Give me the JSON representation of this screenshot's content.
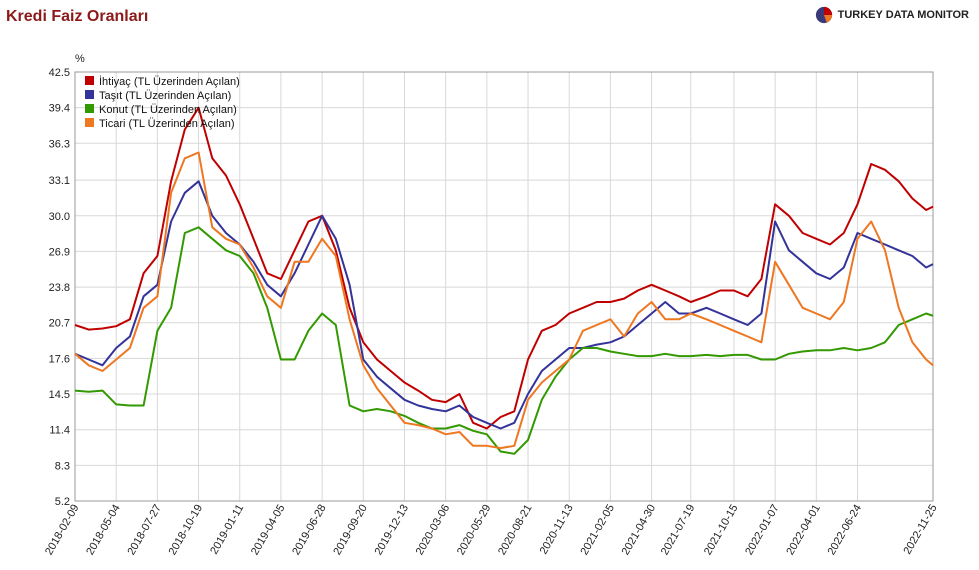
{
  "title": "Kredi Faiz Oranları",
  "brand": {
    "name": "TURKEY DATA MONITOR",
    "icon": "pie-logo-icon"
  },
  "chart_data": {
    "type": "line",
    "ylabel": "%",
    "ylim": [
      5.2,
      42.5
    ],
    "yticks": [
      5.2,
      8.3,
      11.4,
      14.5,
      17.6,
      20.7,
      23.8,
      26.9,
      30.0,
      33.1,
      36.3,
      39.4,
      42.5
    ],
    "ytick_labels": [
      "5.2",
      "8.3",
      "11.4",
      "14.5",
      "17.6",
      "20.7",
      "23.8",
      "26.9",
      "30.0",
      "33.1",
      "36.3",
      "39.4",
      "42.5"
    ],
    "xlim": [
      "2018-02-09",
      "2022-11-25"
    ],
    "xticks": [
      "2018-02-09",
      "2018-05-04",
      "2018-07-27",
      "2018-10-19",
      "2019-01-11",
      "2019-04-05",
      "2019-06-28",
      "2019-09-20",
      "2019-12-13",
      "2020-03-06",
      "2020-05-29",
      "2020-08-21",
      "2020-11-13",
      "2021-02-05",
      "2021-04-30",
      "2021-07-19",
      "2021-10-15",
      "2022-01-07",
      "2022-04-01",
      "2022-06-24",
      "2022-11-25"
    ],
    "grid": true,
    "legend_position": "top-left",
    "x": [
      "2018-02-09",
      "2018-03-09",
      "2018-04-06",
      "2018-05-04",
      "2018-06-01",
      "2018-06-29",
      "2018-07-27",
      "2018-08-24",
      "2018-09-21",
      "2018-10-19",
      "2018-11-16",
      "2018-12-14",
      "2019-01-11",
      "2019-02-08",
      "2019-03-08",
      "2019-04-05",
      "2019-05-03",
      "2019-05-31",
      "2019-06-28",
      "2019-07-26",
      "2019-08-23",
      "2019-09-20",
      "2019-10-18",
      "2019-11-15",
      "2019-12-13",
      "2020-01-10",
      "2020-02-07",
      "2020-03-06",
      "2020-04-03",
      "2020-05-01",
      "2020-05-29",
      "2020-06-26",
      "2020-07-24",
      "2020-08-21",
      "2020-09-18",
      "2020-10-16",
      "2020-11-13",
      "2020-12-11",
      "2021-01-08",
      "2021-02-05",
      "2021-03-05",
      "2021-04-02",
      "2021-04-30",
      "2021-05-28",
      "2021-06-25",
      "2021-07-19",
      "2021-08-20",
      "2021-09-17",
      "2021-10-15",
      "2021-11-12",
      "2021-12-10",
      "2022-01-07",
      "2022-02-04",
      "2022-03-04",
      "2022-04-01",
      "2022-04-29",
      "2022-05-27",
      "2022-06-24",
      "2022-07-22",
      "2022-08-19",
      "2022-09-16",
      "2022-10-14",
      "2022-11-11",
      "2022-11-25"
    ],
    "series": [
      {
        "name": "İhtiyaç (TL Üzerinden Açılan)",
        "color": "#c00000",
        "values": [
          20.5,
          20.1,
          20.2,
          20.4,
          21.0,
          25.0,
          26.5,
          33.0,
          37.5,
          39.4,
          35.0,
          33.5,
          31.0,
          28.0,
          25.0,
          24.5,
          27.0,
          29.5,
          30.0,
          27.0,
          22.0,
          19.0,
          17.5,
          16.5,
          15.5,
          14.8,
          14.0,
          13.8,
          14.5,
          12.0,
          11.5,
          12.5,
          13.0,
          17.5,
          20.0,
          20.5,
          21.5,
          22.0,
          22.5,
          22.5,
          22.8,
          23.5,
          24.0,
          23.5,
          23.0,
          22.5,
          23.0,
          23.5,
          23.5,
          23.0,
          24.5,
          31.0,
          30.0,
          28.5,
          28.0,
          27.5,
          28.5,
          31.0,
          34.5,
          34.0,
          33.0,
          31.5,
          30.5,
          30.8
        ]
      },
      {
        "name": "Taşıt (TL Üzerinden Açılan)",
        "color": "#333399",
        "values": [
          18.0,
          17.5,
          17.0,
          18.5,
          19.5,
          23.0,
          24.0,
          29.5,
          32.0,
          33.0,
          30.0,
          28.5,
          27.5,
          26.0,
          24.0,
          23.0,
          25.0,
          27.5,
          30.0,
          28.0,
          24.0,
          17.5,
          16.0,
          15.0,
          14.0,
          13.5,
          13.2,
          13.0,
          13.5,
          12.5,
          12.0,
          11.5,
          12.0,
          14.5,
          16.5,
          17.5,
          18.5,
          18.5,
          18.8,
          19.0,
          19.5,
          20.5,
          21.5,
          22.5,
          21.5,
          21.5,
          22.0,
          21.5,
          21.0,
          20.5,
          21.5,
          29.5,
          27.0,
          26.0,
          25.0,
          24.5,
          25.5,
          28.5,
          28.0,
          27.5,
          27.0,
          26.5,
          25.5,
          25.8
        ]
      },
      {
        "name": "Konut (TL Üzerinden Açılan)",
        "color": "#339900",
        "values": [
          14.8,
          14.7,
          14.8,
          13.6,
          13.5,
          13.5,
          20.0,
          22.0,
          28.5,
          29.0,
          28.0,
          27.0,
          26.5,
          25.0,
          22.0,
          17.5,
          17.5,
          20.0,
          21.5,
          20.5,
          13.5,
          13.0,
          13.2,
          13.0,
          12.6,
          12.0,
          11.5,
          11.5,
          11.8,
          11.3,
          11.0,
          9.5,
          9.3,
          10.5,
          14.0,
          16.0,
          17.5,
          18.5,
          18.5,
          18.2,
          18.0,
          17.8,
          17.8,
          18.0,
          17.8,
          17.8,
          17.9,
          17.8,
          17.9,
          17.9,
          17.5,
          17.5,
          18.0,
          18.2,
          18.3,
          18.3,
          18.5,
          18.3,
          18.5,
          19.0,
          20.5,
          21.0,
          21.5,
          21.3
        ]
      },
      {
        "name": "Ticari (TL Üzerinden Açılan)",
        "color": "#ee7722",
        "values": [
          18.0,
          17.0,
          16.5,
          17.5,
          18.5,
          22.0,
          23.0,
          32.0,
          35.0,
          35.5,
          29.0,
          28.0,
          27.5,
          25.5,
          23.0,
          22.0,
          26.0,
          26.0,
          28.0,
          26.5,
          21.0,
          17.0,
          15.0,
          13.5,
          12.0,
          11.8,
          11.5,
          11.0,
          11.2,
          10.0,
          10.0,
          9.8,
          10.0,
          14.0,
          15.5,
          16.5,
          17.5,
          20.0,
          20.5,
          21.0,
          19.5,
          21.5,
          22.5,
          21.0,
          21.0,
          21.5,
          21.0,
          20.5,
          20.0,
          19.5,
          19.0,
          26.0,
          24.0,
          22.0,
          21.5,
          21.0,
          22.5,
          28.0,
          29.5,
          27.0,
          22.0,
          19.0,
          17.5,
          17.0
        ]
      }
    ]
  }
}
